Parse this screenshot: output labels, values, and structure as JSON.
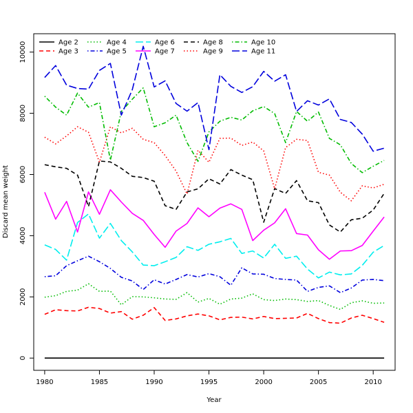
{
  "chart_data": {
    "type": "line",
    "title": "",
    "xlabel": "Year",
    "ylabel": "Discard mean weight",
    "xlim": [
      1979,
      2012
    ],
    "ylim": [
      -400,
      10600
    ],
    "x_ticks": [
      1980,
      1985,
      1990,
      1995,
      2000,
      2005,
      2010
    ],
    "y_ticks": [
      0,
      2000,
      4000,
      6000,
      8000,
      10000
    ],
    "grid": false,
    "legend_position": "top",
    "x": [
      1980,
      1981,
      1982,
      1983,
      1984,
      1985,
      1986,
      1987,
      1988,
      1989,
      1990,
      1991,
      1992,
      1993,
      1994,
      1995,
      1996,
      1997,
      1998,
      1999,
      2000,
      2001,
      2002,
      2003,
      2004,
      2005,
      2006,
      2007,
      2008,
      2009,
      2010,
      2011
    ],
    "series": [
      {
        "name": "Age 2",
        "color": "#000000",
        "dash": "solid",
        "values": [
          0,
          0,
          0,
          0,
          0,
          0,
          0,
          0,
          0,
          0,
          0,
          0,
          0,
          0,
          0,
          0,
          0,
          0,
          0,
          0,
          0,
          0,
          0,
          0,
          0,
          0,
          0,
          0,
          0,
          0,
          0,
          0
        ]
      },
      {
        "name": "Age 3",
        "color": "#ff0000",
        "dash": "dashed",
        "values": [
          1430,
          1580,
          1550,
          1540,
          1660,
          1620,
          1470,
          1520,
          1270,
          1400,
          1650,
          1230,
          1280,
          1380,
          1440,
          1380,
          1250,
          1330,
          1340,
          1280,
          1360,
          1290,
          1300,
          1310,
          1460,
          1290,
          1160,
          1140,
          1310,
          1400,
          1290,
          1170
        ]
      },
      {
        "name": "Age 4",
        "color": "#00bb00",
        "dash": "dotted",
        "values": [
          1990,
          2040,
          2180,
          2220,
          2430,
          2180,
          2190,
          1740,
          2010,
          2000,
          1970,
          1930,
          1920,
          2140,
          1830,
          1950,
          1760,
          1930,
          1960,
          2100,
          1910,
          1880,
          1930,
          1910,
          1850,
          1880,
          1720,
          1590,
          1810,
          1870,
          1790,
          1800
        ]
      },
      {
        "name": "Age 5",
        "color": "#0000dd",
        "dash": "dashdot",
        "values": [
          2660,
          2690,
          3020,
          3180,
          3330,
          3150,
          2930,
          2640,
          2520,
          2240,
          2560,
          2420,
          2570,
          2730,
          2650,
          2760,
          2660,
          2380,
          2950,
          2750,
          2740,
          2600,
          2570,
          2550,
          2180,
          2310,
          2360,
          2140,
          2290,
          2550,
          2570,
          2530
        ]
      },
      {
        "name": "Age 6",
        "color": "#00eeee",
        "dash": "longdash",
        "values": [
          3700,
          3550,
          3200,
          4430,
          4710,
          3920,
          4400,
          3840,
          3470,
          3040,
          3020,
          3150,
          3290,
          3640,
          3520,
          3720,
          3800,
          3910,
          3420,
          3500,
          3270,
          3720,
          3260,
          3330,
          2910,
          2620,
          2810,
          2720,
          2750,
          3030,
          3460,
          3680
        ]
      },
      {
        "name": "Age 7",
        "color": "#ff00ff",
        "dash": "solid",
        "values": [
          5420,
          4540,
          5120,
          4120,
          5430,
          4700,
          5500,
          5100,
          4730,
          4500,
          4040,
          3620,
          4150,
          4400,
          4910,
          4620,
          4900,
          5040,
          4860,
          3840,
          4180,
          4420,
          4880,
          4070,
          4020,
          3540,
          3230,
          3500,
          3510,
          3680,
          4150,
          4610
        ]
      },
      {
        "name": "Age 8",
        "color": "#000000",
        "dash": "dashed",
        "values": [
          6320,
          6250,
          6200,
          5980,
          4950,
          6440,
          6410,
          6200,
          5940,
          5900,
          5780,
          4980,
          4860,
          5430,
          5530,
          5860,
          5690,
          6160,
          5980,
          5830,
          4440,
          5540,
          5380,
          5800,
          5140,
          5080,
          4350,
          4120,
          4520,
          4570,
          4840,
          5380
        ]
      },
      {
        "name": "Age 9",
        "color": "#ff0000",
        "dash": "dotted",
        "values": [
          7220,
          7000,
          7260,
          7560,
          7380,
          6400,
          7560,
          7360,
          7510,
          7150,
          7040,
          6620,
          6110,
          5360,
          6790,
          6400,
          7180,
          7190,
          6950,
          7060,
          6770,
          5530,
          6880,
          7150,
          7110,
          6070,
          5980,
          5420,
          5140,
          5630,
          5560,
          5680
        ]
      },
      {
        "name": "Age 10",
        "color": "#00bb00",
        "dash": "dashdot",
        "values": [
          8560,
          8200,
          7940,
          8660,
          8200,
          8350,
          6470,
          8060,
          8460,
          8830,
          7560,
          7690,
          7940,
          7040,
          6430,
          7390,
          7740,
          7870,
          7780,
          8080,
          8220,
          7990,
          7040,
          8060,
          7740,
          8040,
          7180,
          6970,
          6360,
          6060,
          6270,
          6460
        ]
      },
      {
        "name": "Age 11",
        "color": "#0000dd",
        "dash": "longdash",
        "values": [
          9170,
          9560,
          8920,
          8810,
          8790,
          9400,
          9630,
          7940,
          8770,
          10190,
          8860,
          9060,
          8320,
          8070,
          8350,
          6810,
          9260,
          8880,
          8680,
          8870,
          9370,
          9050,
          9260,
          8060,
          8410,
          8270,
          8470,
          7800,
          7700,
          7320,
          6760,
          6860
        ]
      }
    ]
  }
}
